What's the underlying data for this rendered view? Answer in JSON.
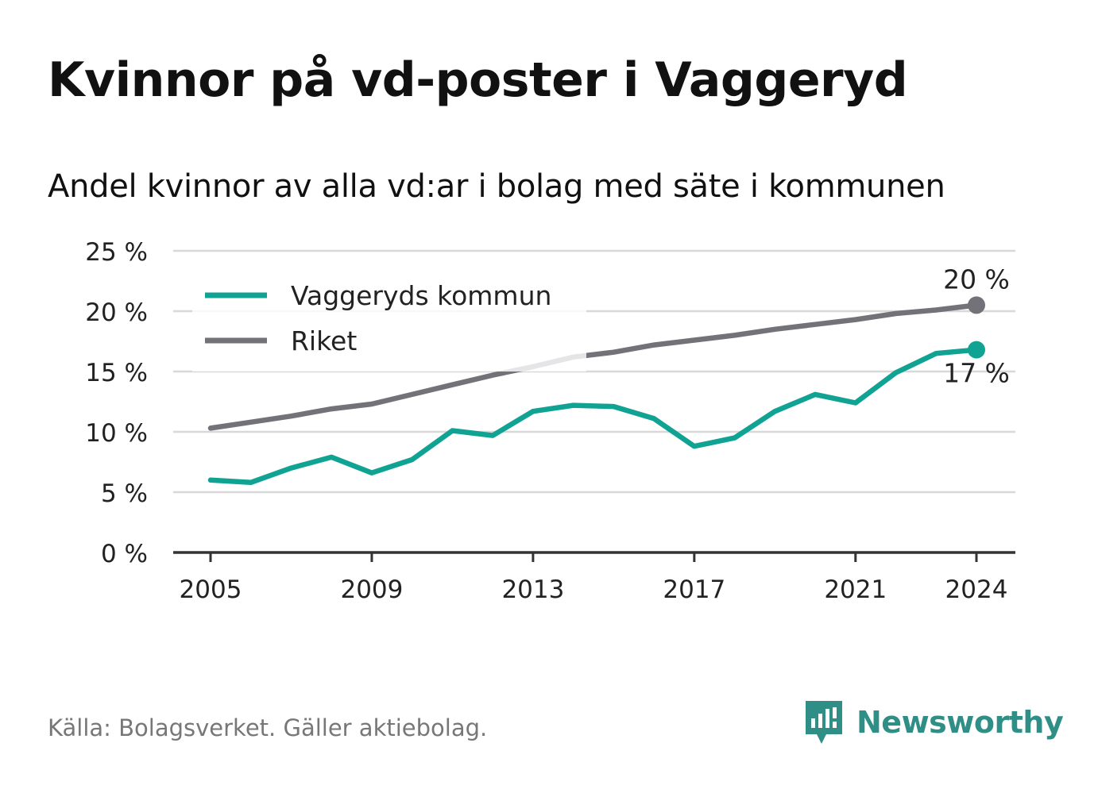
{
  "title": "Kvinnor på vd-poster i Vaggeryd",
  "subtitle": "Andel kvinnor av alla vd:ar i bolag med säte i kommunen",
  "source": "Källa: Bolagsverket. Gäller aktiebolag.",
  "brand": "Newsworthy",
  "colors": {
    "kommun": "#10a393",
    "riket": "#727278",
    "grid": "#d8d8d8",
    "axis": "#333333"
  },
  "chart_data": {
    "type": "line",
    "x": [
      2005,
      2006,
      2007,
      2008,
      2009,
      2010,
      2011,
      2012,
      2013,
      2014,
      2015,
      2016,
      2017,
      2018,
      2019,
      2020,
      2021,
      2022,
      2023,
      2024
    ],
    "x_ticks": [
      2005,
      2009,
      2013,
      2017,
      2021,
      2024
    ],
    "y_ticks": [
      0,
      5,
      10,
      15,
      20,
      25
    ],
    "y_tick_labels": [
      "0 %",
      "5 %",
      "10 %",
      "15 %",
      "20 %",
      "25 %"
    ],
    "ylim": [
      0,
      25
    ],
    "grid": true,
    "legend_position": "top-left",
    "series": [
      {
        "name": "Vaggeryds kommun",
        "color": "#10a393",
        "values": [
          6.0,
          5.8,
          7.0,
          7.9,
          6.6,
          7.7,
          10.1,
          9.7,
          11.7,
          12.2,
          12.1,
          11.1,
          8.8,
          9.5,
          11.7,
          13.1,
          12.4,
          14.9,
          16.5,
          16.8
        ],
        "end_label": "17 %"
      },
      {
        "name": "Riket",
        "color": "#727278",
        "values": [
          10.3,
          10.8,
          11.3,
          11.9,
          12.3,
          13.1,
          13.9,
          14.7,
          15.4,
          16.2,
          16.6,
          17.2,
          17.6,
          18.0,
          18.5,
          18.9,
          19.3,
          19.8,
          20.1,
          20.5
        ],
        "end_label": "20 %"
      }
    ]
  }
}
